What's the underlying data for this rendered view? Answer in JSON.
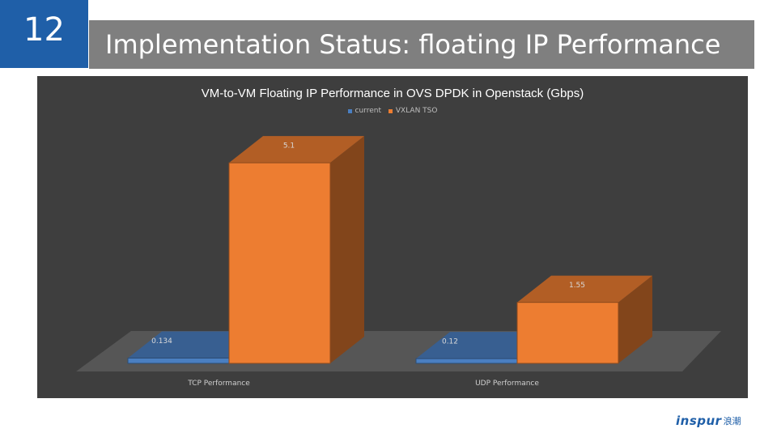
{
  "slide": {
    "number": "12",
    "title": "Implementation Status: floating IP Performance"
  },
  "logo": {
    "text": "inspur",
    "mark": "浪潮"
  },
  "colors": {
    "accent": "#1f5fa8",
    "title_bar": "#7f7f7f",
    "chart_bg": "#3e3e3e",
    "current": "#4a7fc1",
    "vxlan_tso": "#ed7d31"
  },
  "chart_data": {
    "type": "bar",
    "title": "VM-to-VM Floating IP Performance in OVS DPDK in Openstack (Gbps)",
    "categories": [
      "TCP Performance",
      "UDP Performance"
    ],
    "series": [
      {
        "name": "current",
        "values": [
          0.134,
          0.12
        ],
        "labels": [
          "0.134",
          "0.12"
        ]
      },
      {
        "name": "VXLAN TSO",
        "values": [
          5.1,
          1.55
        ],
        "labels": [
          "5.1",
          "1.55"
        ]
      }
    ],
    "ylim": [
      0,
      6
    ],
    "legend_position": "top",
    "grid": false,
    "style": "3d"
  }
}
